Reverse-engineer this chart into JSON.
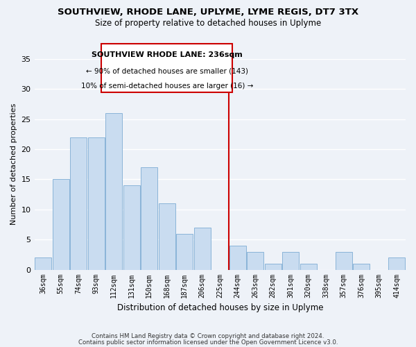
{
  "title": "SOUTHVIEW, RHODE LANE, UPLYME, LYME REGIS, DT7 3TX",
  "subtitle": "Size of property relative to detached houses in Uplyme",
  "xlabel": "Distribution of detached houses by size in Uplyme",
  "ylabel": "Number of detached properties",
  "categories": [
    "36sqm",
    "55sqm",
    "74sqm",
    "93sqm",
    "112sqm",
    "131sqm",
    "150sqm",
    "168sqm",
    "187sqm",
    "206sqm",
    "225sqm",
    "244sqm",
    "263sqm",
    "282sqm",
    "301sqm",
    "320sqm",
    "338sqm",
    "357sqm",
    "376sqm",
    "395sqm",
    "414sqm"
  ],
  "values": [
    2,
    15,
    22,
    22,
    26,
    14,
    17,
    11,
    6,
    7,
    0,
    4,
    3,
    1,
    3,
    1,
    0,
    3,
    1,
    0,
    2
  ],
  "bar_color": "#c9dcf0",
  "bar_edge_color": "#8ab4d8",
  "background_color": "#eef2f8",
  "grid_color": "#ffffff",
  "annotation_box_title": "SOUTHVIEW RHODE LANE: 236sqm",
  "annotation_line1": "← 90% of detached houses are smaller (143)",
  "annotation_line2": "10% of semi-detached houses are larger (16) →",
  "annotation_box_edge": "#cc0000",
  "vline_color": "#cc0000",
  "footnote1": "Contains HM Land Registry data © Crown copyright and database right 2024.",
  "footnote2": "Contains public sector information licensed under the Open Government Licence v3.0.",
  "ylim": [
    0,
    35
  ],
  "yticks": [
    0,
    5,
    10,
    15,
    20,
    25,
    30,
    35
  ]
}
